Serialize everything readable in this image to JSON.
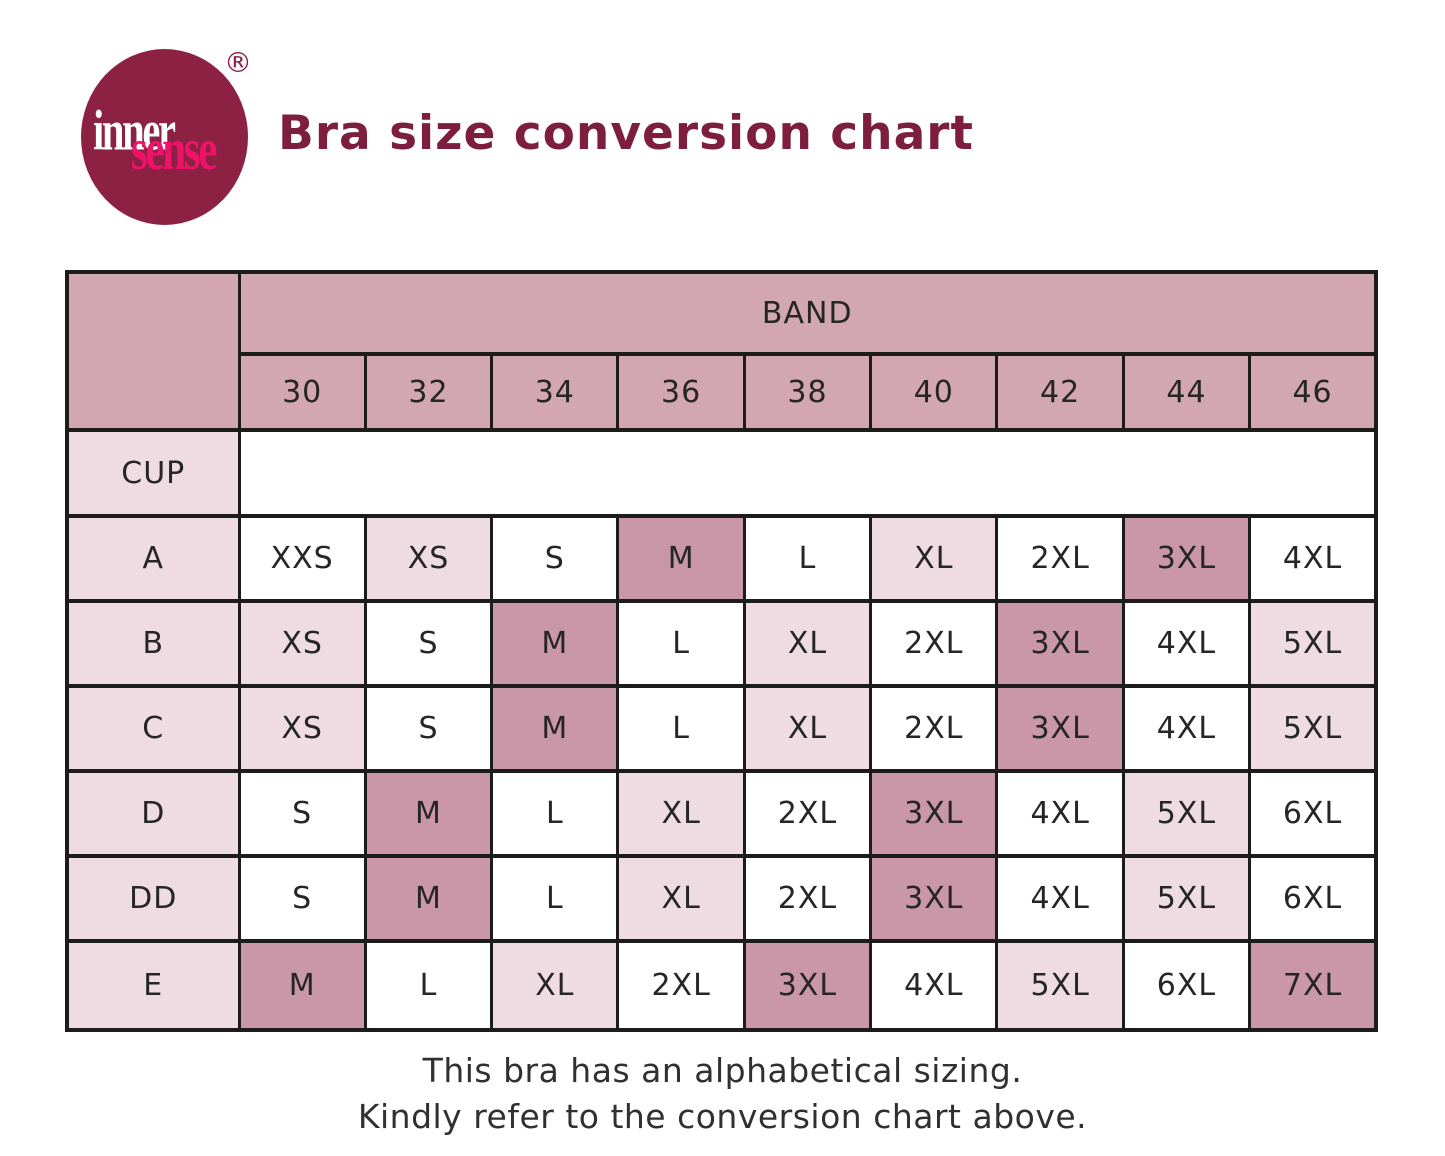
{
  "logo": {
    "word1": "inner",
    "word2": "sense",
    "registered": "®"
  },
  "title": "Bra size conversion chart",
  "colors": {
    "logo_circle": "#8d2143",
    "logo_word1": "#ffffff",
    "logo_word2": "#ee1368",
    "title": "#7d1f3c",
    "header_pink": "#d2a6b2",
    "light_pink": "#eedce2",
    "accent_pink": "#c997a8",
    "cell_white": "#ffffff",
    "border": "#1c1c1c",
    "text": "#262626",
    "footer_text": "#303030"
  },
  "table": {
    "band_label": "BAND",
    "cup_label": "CUP",
    "band_sizes": [
      "30",
      "32",
      "34",
      "36",
      "38",
      "40",
      "42",
      "44",
      "46"
    ],
    "rows": [
      {
        "cup": "A",
        "cells": [
          {
            "size": "XXS",
            "tone": "white"
          },
          {
            "size": "XS",
            "tone": "light"
          },
          {
            "size": "S",
            "tone": "white"
          },
          {
            "size": "M",
            "tone": "dark"
          },
          {
            "size": "L",
            "tone": "white"
          },
          {
            "size": "XL",
            "tone": "light"
          },
          {
            "size": "2XL",
            "tone": "white"
          },
          {
            "size": "3XL",
            "tone": "dark"
          },
          {
            "size": "4XL",
            "tone": "white"
          }
        ]
      },
      {
        "cup": "B",
        "cells": [
          {
            "size": "XS",
            "tone": "light"
          },
          {
            "size": "S",
            "tone": "white"
          },
          {
            "size": "M",
            "tone": "dark"
          },
          {
            "size": "L",
            "tone": "white"
          },
          {
            "size": "XL",
            "tone": "light"
          },
          {
            "size": "2XL",
            "tone": "white"
          },
          {
            "size": "3XL",
            "tone": "dark"
          },
          {
            "size": "4XL",
            "tone": "white"
          },
          {
            "size": "5XL",
            "tone": "light"
          }
        ]
      },
      {
        "cup": "C",
        "cells": [
          {
            "size": "XS",
            "tone": "light"
          },
          {
            "size": "S",
            "tone": "white"
          },
          {
            "size": "M",
            "tone": "dark"
          },
          {
            "size": "L",
            "tone": "white"
          },
          {
            "size": "XL",
            "tone": "light"
          },
          {
            "size": "2XL",
            "tone": "white"
          },
          {
            "size": "3XL",
            "tone": "dark"
          },
          {
            "size": "4XL",
            "tone": "white"
          },
          {
            "size": "5XL",
            "tone": "light"
          }
        ]
      },
      {
        "cup": "D",
        "cells": [
          {
            "size": "S",
            "tone": "white"
          },
          {
            "size": "M",
            "tone": "dark"
          },
          {
            "size": "L",
            "tone": "white"
          },
          {
            "size": "XL",
            "tone": "light"
          },
          {
            "size": "2XL",
            "tone": "white"
          },
          {
            "size": "3XL",
            "tone": "dark"
          },
          {
            "size": "4XL",
            "tone": "white"
          },
          {
            "size": "5XL",
            "tone": "light"
          },
          {
            "size": "6XL",
            "tone": "white"
          }
        ]
      },
      {
        "cup": "DD",
        "cells": [
          {
            "size": "S",
            "tone": "white"
          },
          {
            "size": "M",
            "tone": "dark"
          },
          {
            "size": "L",
            "tone": "white"
          },
          {
            "size": "XL",
            "tone": "light"
          },
          {
            "size": "2XL",
            "tone": "white"
          },
          {
            "size": "3XL",
            "tone": "dark"
          },
          {
            "size": "4XL",
            "tone": "white"
          },
          {
            "size": "5XL",
            "tone": "light"
          },
          {
            "size": "6XL",
            "tone": "white"
          }
        ]
      },
      {
        "cup": "E",
        "cells": [
          {
            "size": "M",
            "tone": "dark"
          },
          {
            "size": "L",
            "tone": "white"
          },
          {
            "size": "XL",
            "tone": "light"
          },
          {
            "size": "2XL",
            "tone": "white"
          },
          {
            "size": "3XL",
            "tone": "dark"
          },
          {
            "size": "4XL",
            "tone": "white"
          },
          {
            "size": "5XL",
            "tone": "light"
          },
          {
            "size": "6XL",
            "tone": "white"
          },
          {
            "size": "7XL",
            "tone": "dark"
          }
        ]
      }
    ]
  },
  "footer": {
    "line1": "This bra has an alphabetical sizing.",
    "line2": "Kindly refer to the conversion chart above."
  },
  "chart_data": {
    "type": "table",
    "title": "Bra size conversion chart",
    "column_group": "BAND",
    "columns": [
      "CUP",
      "30",
      "32",
      "34",
      "36",
      "38",
      "40",
      "42",
      "44",
      "46"
    ],
    "rows": [
      [
        "A",
        "XXS",
        "XS",
        "S",
        "M",
        "L",
        "XL",
        "2XL",
        "3XL",
        "4XL"
      ],
      [
        "B",
        "XS",
        "S",
        "M",
        "L",
        "XL",
        "2XL",
        "3XL",
        "4XL",
        "5XL"
      ],
      [
        "C",
        "XS",
        "S",
        "M",
        "L",
        "XL",
        "2XL",
        "3XL",
        "4XL",
        "5XL"
      ],
      [
        "D",
        "S",
        "M",
        "L",
        "XL",
        "2XL",
        "3XL",
        "4XL",
        "5XL",
        "6XL"
      ],
      [
        "DD",
        "S",
        "M",
        "L",
        "XL",
        "2XL",
        "3XL",
        "4XL",
        "5XL",
        "6XL"
      ],
      [
        "E",
        "M",
        "L",
        "XL",
        "2XL",
        "3XL",
        "4XL",
        "5XL",
        "6XL",
        "7XL"
      ]
    ]
  }
}
